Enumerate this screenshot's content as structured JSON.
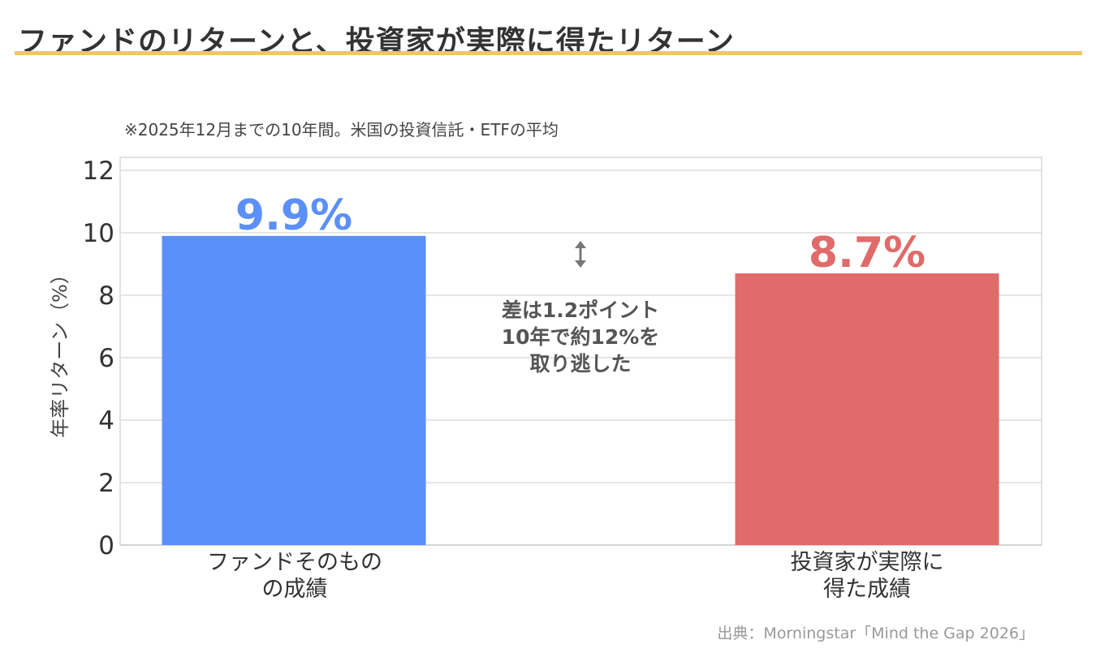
{
  "page": {
    "title": "ファンドのリターンと、投資家が実際に得たリターン",
    "subtitle": "※2025年12月までの10年間。米国の投資信託・ETFの平均",
    "source": "出典：Morningstar「Mind the Gap 2026」",
    "accent_color": "#f2c46b"
  },
  "annotation": {
    "lines": [
      "差は1.2ポイント",
      "10年で約12%を",
      "取り逃した"
    ],
    "icon": "up-down-arrow-icon"
  },
  "chart_data": {
    "type": "bar",
    "categories": [
      [
        "ファンドそのもの",
        "の成績"
      ],
      [
        "投資家が実際に",
        "得た成績"
      ]
    ],
    "values": [
      9.9,
      8.7
    ],
    "value_labels": [
      "9.9%",
      "8.7%"
    ],
    "colors": [
      "#5b8ff9",
      "#e06b6b"
    ],
    "ylabel": "年率リターン（%）",
    "ylim": [
      0,
      12
    ],
    "yticks": [
      0,
      2,
      4,
      6,
      8,
      10,
      12
    ],
    "grid": true
  }
}
